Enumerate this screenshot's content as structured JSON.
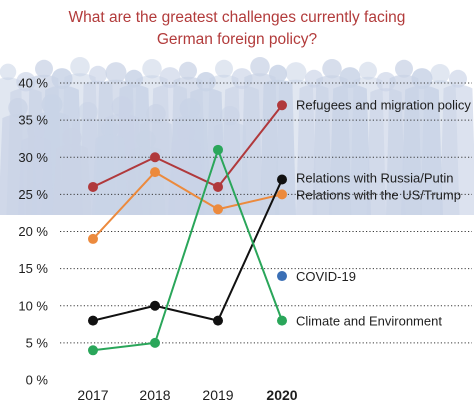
{
  "chart_data": {
    "type": "line",
    "title": "What are the greatest challenges currently facing German foreign policy?",
    "title_lines": [
      "What are the greatest challenges currently facing",
      "German foreign policy?"
    ],
    "categories": [
      "2017",
      "2018",
      "2019",
      "2020"
    ],
    "bold_category": "2020",
    "y_ticks": [
      "0 %",
      "5 %",
      "10 %",
      "15 %",
      "20 %",
      "25 %",
      "30 %",
      "35 %",
      "40 %"
    ],
    "ylim": [
      0,
      40
    ],
    "y_unit": "%",
    "grid": true,
    "series": [
      {
        "name": "Refugees and migration policy",
        "color": "#b0393c",
        "values": [
          26,
          30,
          26,
          37
        ]
      },
      {
        "name": "Relations with the US/Trump",
        "color": "#ec8a3d",
        "values": [
          19,
          28,
          23,
          25
        ]
      },
      {
        "name": "Relations with Russia/Putin",
        "color": "#111111",
        "values": [
          8,
          10,
          8,
          27
        ]
      },
      {
        "name": "Climate and Environment",
        "color": "#2aa65a",
        "values": [
          4,
          5,
          31,
          8
        ]
      },
      {
        "name": "COVID-19",
        "color": "#3a6fb5",
        "values": [
          null,
          null,
          null,
          14
        ]
      }
    ],
    "background": "crowd-silhouettes",
    "background_color": "#c9d3e6",
    "title_color": "#b23b3b"
  }
}
